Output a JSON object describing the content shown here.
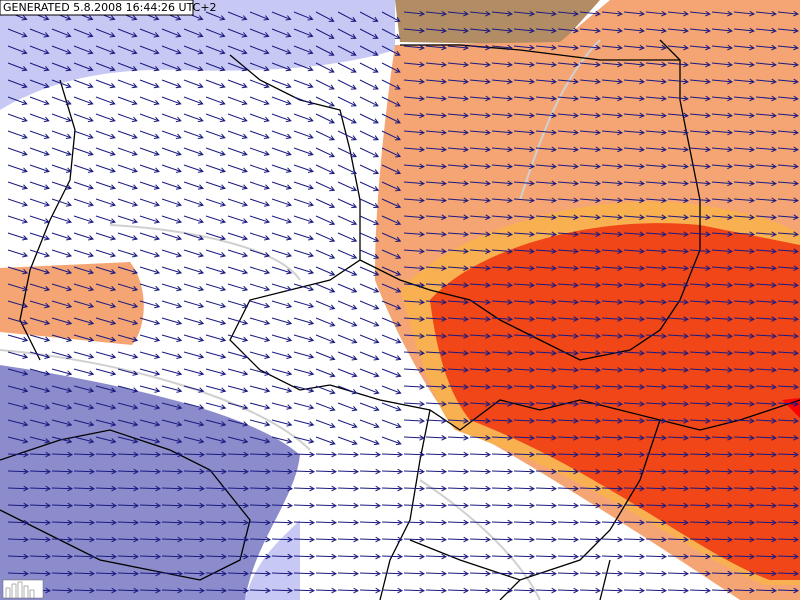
{
  "header": {
    "generated": "GENERATED 5.8.2008 16:44:26 UTC+2"
  }
}
